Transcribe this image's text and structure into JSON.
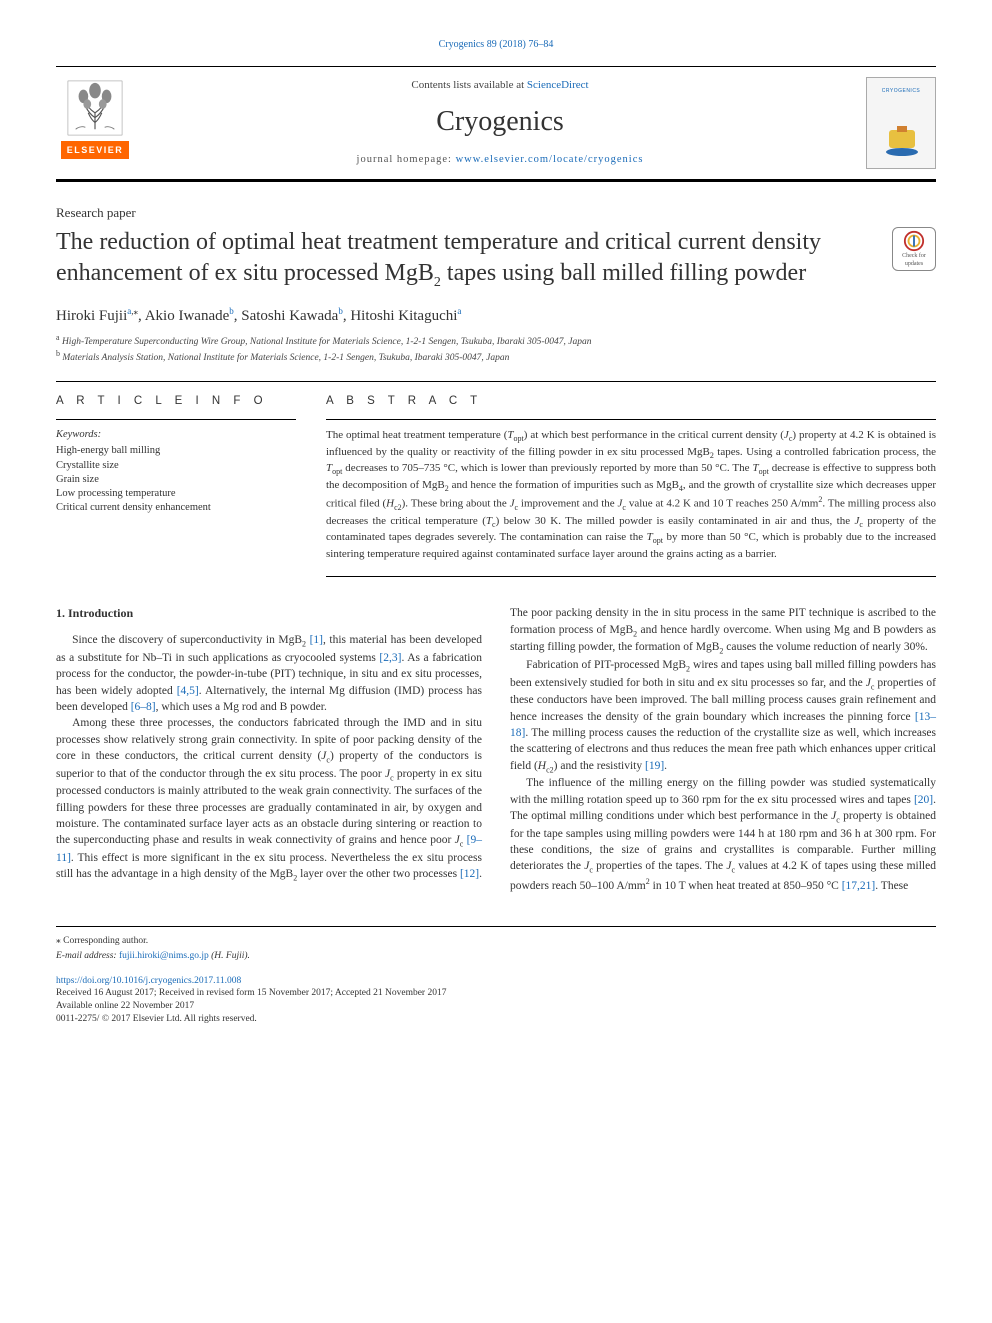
{
  "top_citation_link": "Cryogenics 89 (2018) 76–84",
  "masthead": {
    "contents_prefix": "Contents lists available at ",
    "contents_link_text": "ScienceDirect",
    "journal_name": "Cryogenics",
    "homepage_prefix": "journal homepage: ",
    "homepage_url": "www.elsevier.com/locate/cryogenics",
    "elsevier_word": "ELSEVIER",
    "cover_band": "CRYOGENICS"
  },
  "paper_type": "Research paper",
  "title_parts": {
    "p1": "The reduction of optimal heat treatment temperature and critical current density enhancement of ex situ processed MgB",
    "p1_sub": "2",
    "p2": " tapes using ball milled filling powder"
  },
  "crossmark": {
    "line1": "Check for",
    "line2": "updates"
  },
  "authors": [
    {
      "name": "Hiroki Fujii",
      "affil": "a",
      "corr": true
    },
    {
      "name": "Akio Iwanade",
      "affil": "b",
      "corr": false
    },
    {
      "name": "Satoshi Kawada",
      "affil": "b",
      "corr": false
    },
    {
      "name": "Hitoshi Kitaguchi",
      "affil": "a",
      "corr": false
    }
  ],
  "affiliations": {
    "a": "High-Temperature Superconducting Wire Group, National Institute for Materials Science, 1-2-1 Sengen, Tsukuba, Ibaraki 305-0047, Japan",
    "b": "Materials Analysis Station, National Institute for Materials Science, 1-2-1 Sengen, Tsukuba, Ibaraki 305-0047, Japan"
  },
  "article_info_head": "A R T I C L E  I N F O",
  "abstract_head": "A B S T R A C T",
  "keywords_label": "Keywords:",
  "keywords": [
    "High-energy ball milling",
    "Crystallite size",
    "Grain size",
    "Low processing temperature",
    "Critical current density enhancement"
  ],
  "abstract_html": "The optimal heat treatment temperature (<i>T</i><span class=\"sub\">opt</span>) at which best performance in the critical current density (<i>J</i><span class=\"sub\">c</span>) property at 4.2 K is obtained is influenced by the quality or reactivity of the filling powder in ex situ processed MgB<span class=\"sub\">2</span> tapes. Using a controlled fabrication process, the <i>T</i><span class=\"sub\">opt</span> decreases to 705–735 °C, which is lower than previously reported by more than 50 °C. The <i>T</i><span class=\"sub\">opt</span> decrease is effective to suppress both the decomposition of MgB<span class=\"sub\">2</span> and hence the formation of impurities such as MgB<span class=\"sub\">4</span>, and the growth of crystallite size which decreases upper critical filed (<i>H</i><span class=\"sub\">c2</span>). These bring about the <i>J</i><span class=\"sub\">c</span> improvement and the <i>J</i><span class=\"sub\">c</span> value at 4.2 K and 10 T reaches 250 A/mm<span class=\"sup\">2</span>. The milling process also decreases the critical temperature (<i>T</i><span class=\"sub\">c</span>) below 30 K. The milled powder is easily contaminated in air and thus, the <i>J</i><span class=\"sub\">c</span> property of the contaminated tapes degrades severely. The contamination can raise the <i>T</i><span class=\"sub\">opt</span> by more than 50 °C, which is probably due to the increased sintering temperature required against contaminated surface layer around the grains acting as a barrier.",
  "intro_heading": "1. Introduction",
  "body_paragraphs": [
    "Since the discovery of superconductivity in MgB<span class=\"sub\">2</span> <a href=\"#\" data-name=\"cite-link\" data-interactable=\"true\">[1]</a>, this material has been developed as a substitute for Nb–Ti in such applications as cryocooled systems <a href=\"#\" data-name=\"cite-link\" data-interactable=\"true\">[2,3]</a>. As a fabrication process for the conductor, the powder-in-tube (PIT) technique, in situ and ex situ processes, has been widely adopted <a href=\"#\" data-name=\"cite-link\" data-interactable=\"true\">[4,5]</a>. Alternatively, the internal Mg diffusion (IMD) process has been developed <a href=\"#\" data-name=\"cite-link\" data-interactable=\"true\">[6–8]</a>, which uses a Mg rod and B powder.",
    "Among these three processes, the conductors fabricated through the IMD and in situ processes show relatively strong grain connectivity. In spite of poor packing density of the core in these conductors, the critical current density (<i>J</i><span class=\"sub\">c</span>) property of the conductors is superior to that of the conductor through the ex situ process. The poor <i>J</i><span class=\"sub\">c</span> property in ex situ processed conductors is mainly attributed to the weak grain connectivity. The surfaces of the filling powders for these three processes are gradually contaminated in air, by oxygen and moisture. The contaminated surface layer acts as an obstacle during sintering or reaction to the superconducting phase and results in weak connectivity of grains and hence poor <i>J</i><span class=\"sub\">c</span> <a href=\"#\" data-name=\"cite-link\" data-interactable=\"true\">[9–11]</a>. This effect is more significant in the ex situ process. Nevertheless the ex situ process still has the advantage in a high density of the MgB<span class=\"sub\">2</span> layer over the other two processes <a href=\"#\" data-name=\"cite-link\" data-interactable=\"true\">[12]</a>. The poor packing density in the in situ process in the same PIT technique is ascribed to the formation process of MgB<span class=\"sub\">2</span> and hence hardly overcome. When using Mg and B powders as starting filling powder, the formation of MgB<span class=\"sub\">2</span> causes the volume reduction of nearly 30%.",
    "Fabrication of PIT-processed MgB<span class=\"sub\">2</span> wires and tapes using ball milled filling powders has been extensively studied for both in situ and ex situ processes so far, and the <i>J</i><span class=\"sub\">c</span> properties of these conductors have been improved. The ball milling process causes grain refinement and hence increases the density of the grain boundary which increases the pinning force <a href=\"#\" data-name=\"cite-link\" data-interactable=\"true\">[13–18]</a>. The milling process causes the reduction of the crystallite size as well, which increases the scattering of electrons and thus reduces the mean free path which enhances upper critical field (<i>H</i><span class=\"sub\">c2</span>) and the resistivity <a href=\"#\" data-name=\"cite-link\" data-interactable=\"true\">[19]</a>.",
    "The influence of the milling energy on the filling powder was studied systematically with the milling rotation speed up to 360 rpm for the ex situ processed wires and tapes <a href=\"#\" data-name=\"cite-link\" data-interactable=\"true\">[20]</a>. The optimal milling conditions under which best performance in the <i>J</i><span class=\"sub\">c</span> property is obtained for the tape samples using milling powders were 144 h at 180 rpm and 36 h at 300 rpm. For these conditions, the size of grains and crystallites is comparable. Further milling deteriorates the <i>J</i><span class=\"sub\">c</span> properties of the tapes. The <i>J</i><span class=\"sub\">c</span> values at 4.2 K of tapes using these milled powders reach 50–100 A/mm<span class=\"sup\">2</span> in 10 T when heat treated at 850–950 °C <a href=\"#\" data-name=\"cite-link\" data-interactable=\"true\">[17,21]</a>. These"
  ],
  "footer": {
    "corr_label": "⁎ Corresponding author.",
    "email_label": "E-mail address: ",
    "email": "fujii.hiroki@nims.go.jp",
    "email_name": " (H. Fujii).",
    "doi": "https://doi.org/10.1016/j.cryogenics.2017.11.008",
    "history": "Received 16 August 2017; Received in revised form 15 November 2017; Accepted 21 November 2017",
    "online": "Available online 22 November 2017",
    "copyright": "0011-2275/ © 2017 Elsevier Ltd. All rights reserved."
  },
  "colors": {
    "link": "#1a6bb8",
    "elsevier_orange": "#ff6600",
    "text": "#333333",
    "rule": "#000000"
  }
}
